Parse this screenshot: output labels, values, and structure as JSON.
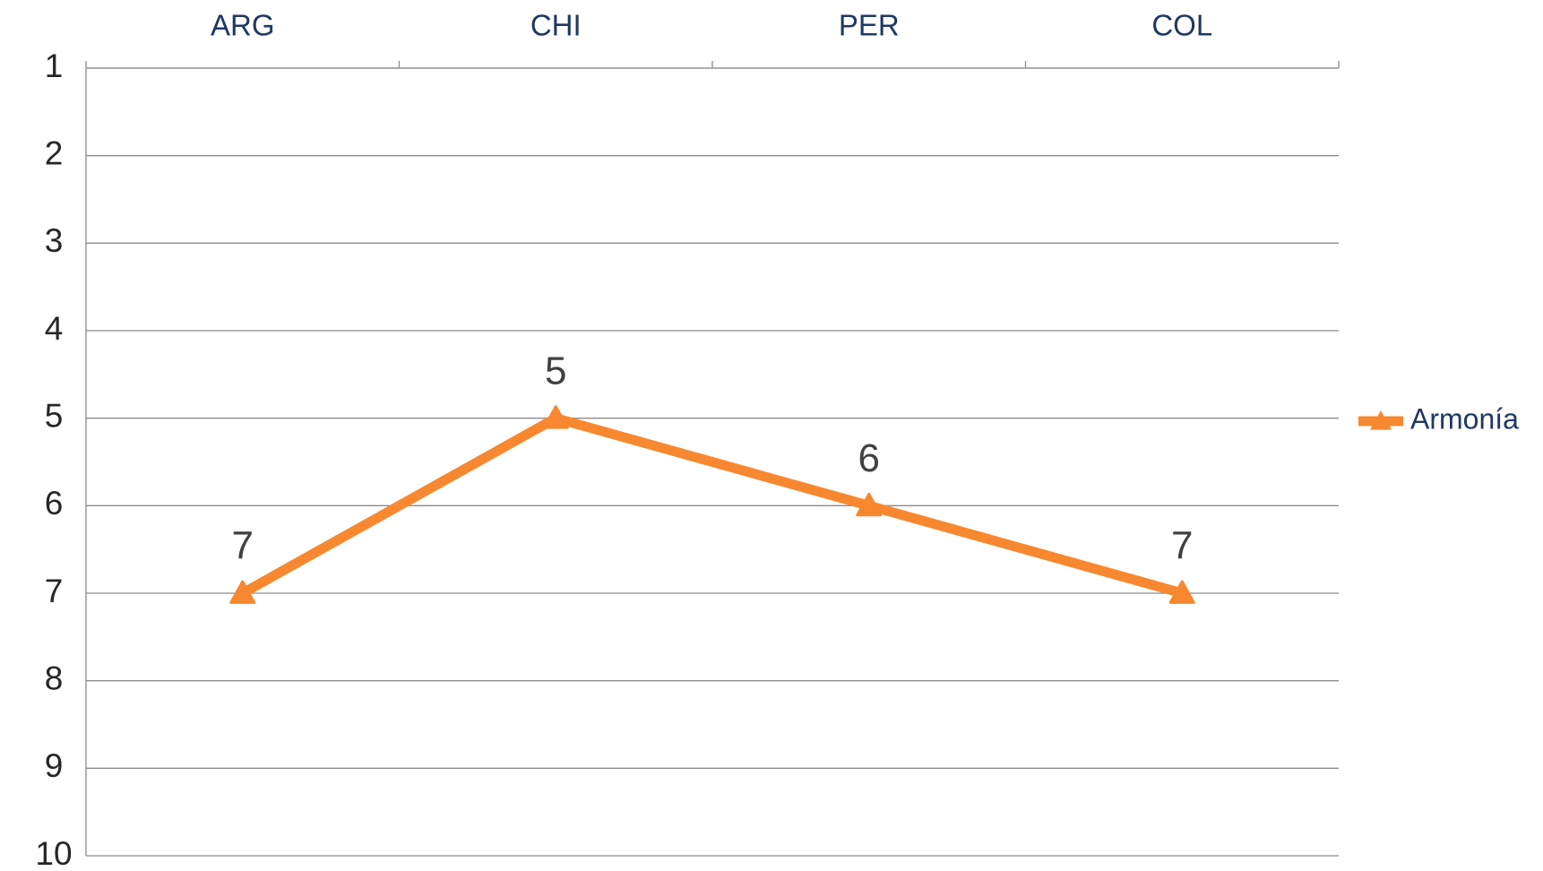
{
  "chart_data": {
    "type": "line",
    "categories": [
      "ARG",
      "CHI",
      "PER",
      "COL"
    ],
    "series": [
      {
        "name": "Armonía",
        "color": "#f7882f",
        "values": [
          7,
          5,
          6,
          7
        ]
      }
    ],
    "ylim": [
      1,
      10
    ],
    "yticks": [
      1,
      2,
      3,
      4,
      5,
      6,
      7,
      8,
      9,
      10
    ],
    "y_inverted": true,
    "x_axis_position": "top",
    "grid": true,
    "legend": "right",
    "marker": "triangle",
    "data_labels": true
  }
}
